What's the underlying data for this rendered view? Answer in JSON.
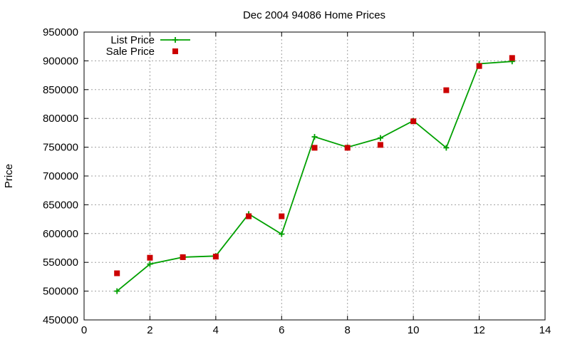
{
  "chart_data": {
    "type": "line",
    "title": "Dec 2004 94086 Home Prices",
    "xlabel": "",
    "ylabel": "Price",
    "xlim": [
      0,
      14
    ],
    "ylim": [
      450000,
      950000
    ],
    "x_ticks": [
      "0",
      "2",
      "4",
      "6",
      "8",
      "10",
      "12",
      "14"
    ],
    "y_ticks": [
      "450000",
      "500000",
      "550000",
      "600000",
      "650000",
      "700000",
      "750000",
      "800000",
      "850000",
      "900000",
      "950000"
    ],
    "grid": true,
    "legend_position": "top-left",
    "series": [
      {
        "name": "List Price",
        "style": "lines+crosses",
        "color": "#00a000",
        "points": [
          [
            1,
            500000
          ],
          [
            2,
            547000
          ],
          [
            3,
            559000
          ],
          [
            4,
            561000
          ],
          [
            5,
            634000
          ],
          [
            6,
            599000
          ],
          [
            7,
            768000
          ],
          [
            8,
            750000
          ],
          [
            9,
            766000
          ],
          [
            10,
            796000
          ],
          [
            11,
            749000
          ],
          [
            12,
            895000
          ],
          [
            13,
            899000
          ]
        ]
      },
      {
        "name": "Sale Price",
        "style": "squares",
        "color": "#cc0000",
        "points": [
          [
            1,
            531000
          ],
          [
            2,
            558000
          ],
          [
            3,
            559000
          ],
          [
            4,
            560000
          ],
          [
            5,
            630000
          ],
          [
            6,
            630000
          ],
          [
            7,
            749000
          ],
          [
            8,
            749000
          ],
          [
            9,
            754000
          ],
          [
            10,
            795000
          ],
          [
            11,
            849000
          ],
          [
            12,
            891000
          ],
          [
            13,
            905000
          ]
        ]
      }
    ]
  }
}
